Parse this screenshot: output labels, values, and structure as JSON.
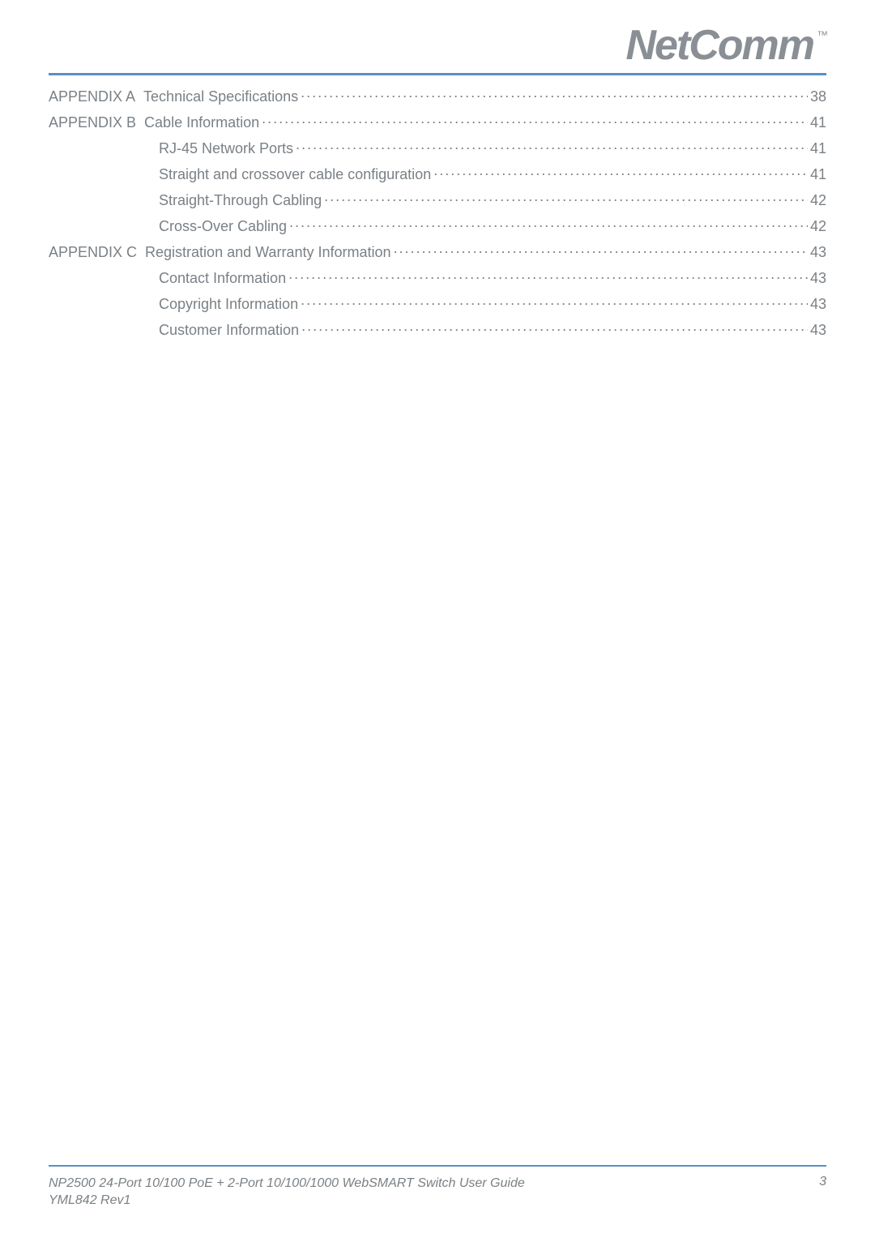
{
  "brand": {
    "name": "NetComm",
    "tm": "™"
  },
  "colors": {
    "text": "#7a8085",
    "rule": "#5a8fc4",
    "logo": "#8a8f95",
    "background": "#ffffff"
  },
  "toc": {
    "items": [
      {
        "prefix": "APPENDIX A",
        "title": "Technical Specifications",
        "page": "38",
        "level": 1
      },
      {
        "prefix": "APPENDIX B",
        "title": "Cable Information",
        "page": "41",
        "level": 1
      },
      {
        "prefix": "",
        "title": "RJ-45 Network Ports ",
        "page": "41",
        "level": 2
      },
      {
        "prefix": "",
        "title": "Straight and crossover cable configuration ",
        "page": "41",
        "level": 2
      },
      {
        "prefix": "",
        "title": "Straight-Through Cabling",
        "page": "42",
        "level": 2
      },
      {
        "prefix": "",
        "title": "Cross-Over Cabling ",
        "page": "42",
        "level": 2
      },
      {
        "prefix": "APPENDIX C",
        "title": "Registration and Warranty Information ",
        "page": "43",
        "level": 1
      },
      {
        "prefix": "",
        "title": "Contact Information ",
        "page": "43",
        "level": 2
      },
      {
        "prefix": "",
        "title": "Copyright Information ",
        "page": "43",
        "level": 2
      },
      {
        "prefix": "",
        "title": "Customer Information ",
        "page": "43",
        "level": 2
      }
    ]
  },
  "footer": {
    "doc_title": "NP2500 24-Port 10/100 PoE + 2-Port 10/100/1000 WebSMART Switch User Guide",
    "doc_code": "YML842 Rev1",
    "page_number": "3"
  }
}
